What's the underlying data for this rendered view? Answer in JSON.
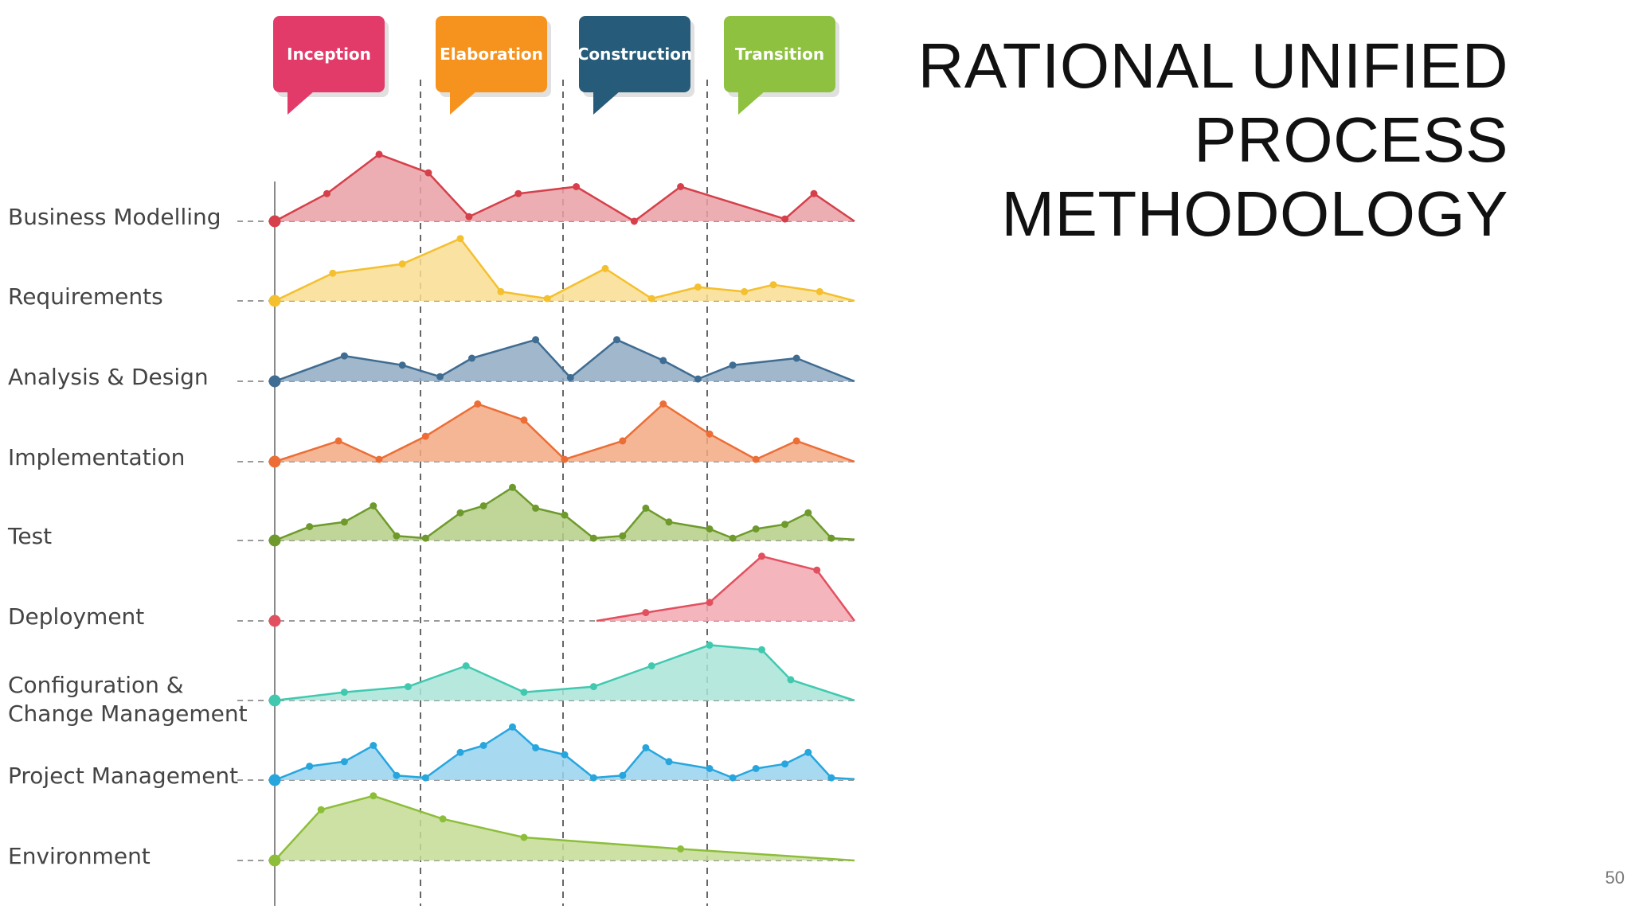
{
  "title": {
    "lines": [
      "RATIONAL UNIFIED",
      "PROCESS",
      "METHODOLOGY"
    ]
  },
  "slide_number": "50",
  "phases": [
    {
      "name": "Inception",
      "color": "#E23B6A"
    },
    {
      "name": "Elaboration",
      "color": "#F5931E"
    },
    {
      "name": "Construction",
      "color": "#265C7A"
    },
    {
      "name": "Transition",
      "color": "#8DC13F"
    }
  ],
  "disciplines": [
    {
      "name": "Business Modelling",
      "color": "#D5404B",
      "fill": "#E9A0A4",
      "effort": [
        [
          0,
          0
        ],
        [
          0.09,
          0.6
        ],
        [
          0.18,
          1.45
        ],
        [
          0.265,
          1.05
        ],
        [
          0.335,
          0.1
        ],
        [
          0.42,
          0.6
        ],
        [
          0.52,
          0.75
        ],
        [
          0.62,
          0
        ],
        [
          0.7,
          0.75
        ],
        [
          0.88,
          0.05
        ],
        [
          0.93,
          0.6
        ],
        [
          1,
          0
        ]
      ]
    },
    {
      "name": "Requirements",
      "color": "#F4C02E",
      "fill": "#F9DE92",
      "effort": [
        [
          0,
          0
        ],
        [
          0.1,
          0.6
        ],
        [
          0.22,
          0.8
        ],
        [
          0.32,
          1.35
        ],
        [
          0.39,
          0.2
        ],
        [
          0.47,
          0.05
        ],
        [
          0.57,
          0.7
        ],
        [
          0.65,
          0.05
        ],
        [
          0.73,
          0.3
        ],
        [
          0.81,
          0.2
        ],
        [
          0.86,
          0.35
        ],
        [
          0.94,
          0.2
        ],
        [
          1,
          0
        ]
      ]
    },
    {
      "name": "Analysis & Design",
      "color": "#3F6C92",
      "fill": "#8FAAC3",
      "effort": [
        [
          0,
          0
        ],
        [
          0.12,
          0.55
        ],
        [
          0.22,
          0.35
        ],
        [
          0.285,
          0.1
        ],
        [
          0.34,
          0.5
        ],
        [
          0.45,
          0.9
        ],
        [
          0.51,
          0.08
        ],
        [
          0.59,
          0.9
        ],
        [
          0.67,
          0.45
        ],
        [
          0.73,
          0.05
        ],
        [
          0.79,
          0.35
        ],
        [
          0.9,
          0.5
        ],
        [
          1,
          0
        ]
      ]
    },
    {
      "name": "Implementation",
      "color": "#EC6E36",
      "fill": "#F3A983",
      "effort": [
        [
          0,
          0
        ],
        [
          0.11,
          0.45
        ],
        [
          0.18,
          0.05
        ],
        [
          0.26,
          0.55
        ],
        [
          0.35,
          1.25
        ],
        [
          0.43,
          0.9
        ],
        [
          0.5,
          0.05
        ],
        [
          0.6,
          0.45
        ],
        [
          0.67,
          1.25
        ],
        [
          0.75,
          0.6
        ],
        [
          0.83,
          0.05
        ],
        [
          0.9,
          0.45
        ],
        [
          1,
          0
        ]
      ]
    },
    {
      "name": "Test",
      "color": "#6E9A2C",
      "fill": "#B4CF86",
      "effort": [
        [
          0,
          0
        ],
        [
          0.06,
          0.3
        ],
        [
          0.12,
          0.4
        ],
        [
          0.17,
          0.75
        ],
        [
          0.21,
          0.1
        ],
        [
          0.26,
          0.05
        ],
        [
          0.32,
          0.6
        ],
        [
          0.36,
          0.75
        ],
        [
          0.41,
          1.15
        ],
        [
          0.45,
          0.7
        ],
        [
          0.5,
          0.55
        ],
        [
          0.55,
          0.05
        ],
        [
          0.6,
          0.1
        ],
        [
          0.64,
          0.7
        ],
        [
          0.68,
          0.4
        ],
        [
          0.75,
          0.25
        ],
        [
          0.79,
          0.05
        ],
        [
          0.83,
          0.25
        ],
        [
          0.88,
          0.35
        ],
        [
          0.92,
          0.6
        ],
        [
          0.96,
          0.05
        ],
        [
          1,
          0.02
        ]
      ]
    },
    {
      "name": "Deployment",
      "color": "#E2505F",
      "fill": "#F3A8B1",
      "effort": [
        [
          0.555,
          0
        ],
        [
          0.64,
          0.18
        ],
        [
          0.75,
          0.4
        ],
        [
          0.84,
          1.4
        ],
        [
          0.935,
          1.1
        ],
        [
          1,
          0
        ]
      ]
    },
    {
      "name": "Configuration  &\nChange Management",
      "color": "#41C9B0",
      "fill": "#A9E4D8",
      "effort": [
        [
          0,
          0
        ],
        [
          0.12,
          0.18
        ],
        [
          0.23,
          0.3
        ],
        [
          0.33,
          0.75
        ],
        [
          0.43,
          0.18
        ],
        [
          0.55,
          0.3
        ],
        [
          0.65,
          0.75
        ],
        [
          0.75,
          1.2
        ],
        [
          0.84,
          1.1
        ],
        [
          0.89,
          0.45
        ],
        [
          1,
          0
        ]
      ]
    },
    {
      "name": "Project Management",
      "color": "#27A6DD",
      "fill": "#98D2EE",
      "effort": [
        [
          0,
          0
        ],
        [
          0.06,
          0.3
        ],
        [
          0.12,
          0.4
        ],
        [
          0.17,
          0.75
        ],
        [
          0.21,
          0.1
        ],
        [
          0.26,
          0.05
        ],
        [
          0.32,
          0.6
        ],
        [
          0.36,
          0.75
        ],
        [
          0.41,
          1.15
        ],
        [
          0.45,
          0.7
        ],
        [
          0.5,
          0.55
        ],
        [
          0.55,
          0.05
        ],
        [
          0.6,
          0.1
        ],
        [
          0.64,
          0.7
        ],
        [
          0.68,
          0.4
        ],
        [
          0.75,
          0.25
        ],
        [
          0.79,
          0.05
        ],
        [
          0.83,
          0.25
        ],
        [
          0.88,
          0.35
        ],
        [
          0.92,
          0.6
        ],
        [
          0.96,
          0.05
        ],
        [
          1,
          0.02
        ]
      ]
    },
    {
      "name": "Environment",
      "color": "#8DBE3A",
      "fill": "#C4DC95",
      "effort": [
        [
          0,
          0
        ],
        [
          0.08,
          1.1
        ],
        [
          0.17,
          1.4
        ],
        [
          0.29,
          0.9
        ],
        [
          0.43,
          0.5
        ],
        [
          0.7,
          0.25
        ],
        [
          1,
          0
        ]
      ]
    }
  ]
}
